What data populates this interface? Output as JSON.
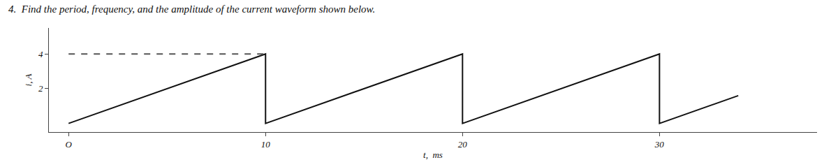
{
  "chart_data": {
    "type": "line",
    "title": "4.  Find the period, frequency, and the amplitude of the current waveform shown below.",
    "x_label": "t,  ms",
    "y_label": "i, A",
    "series": [
      {
        "color": "#111111",
        "line_style": "solid",
        "x": [
          0,
          10,
          10,
          20,
          20,
          30,
          30,
          34
        ],
        "values": [
          0,
          4,
          0,
          4,
          0,
          4,
          0,
          1.6
        ]
      },
      {
        "color": "#555555",
        "line_style": "dashed",
        "x": [
          0,
          10
        ],
        "values": [
          4,
          4
        ]
      }
    ],
    "xlim": [
      -1,
      38
    ],
    "ylim": [
      -0.5,
      5.5
    ],
    "xticks": [
      {
        "value": 0,
        "label": "O"
      },
      10,
      20,
      30
    ],
    "yticks": [
      2,
      4
    ],
    "grid": false
  }
}
